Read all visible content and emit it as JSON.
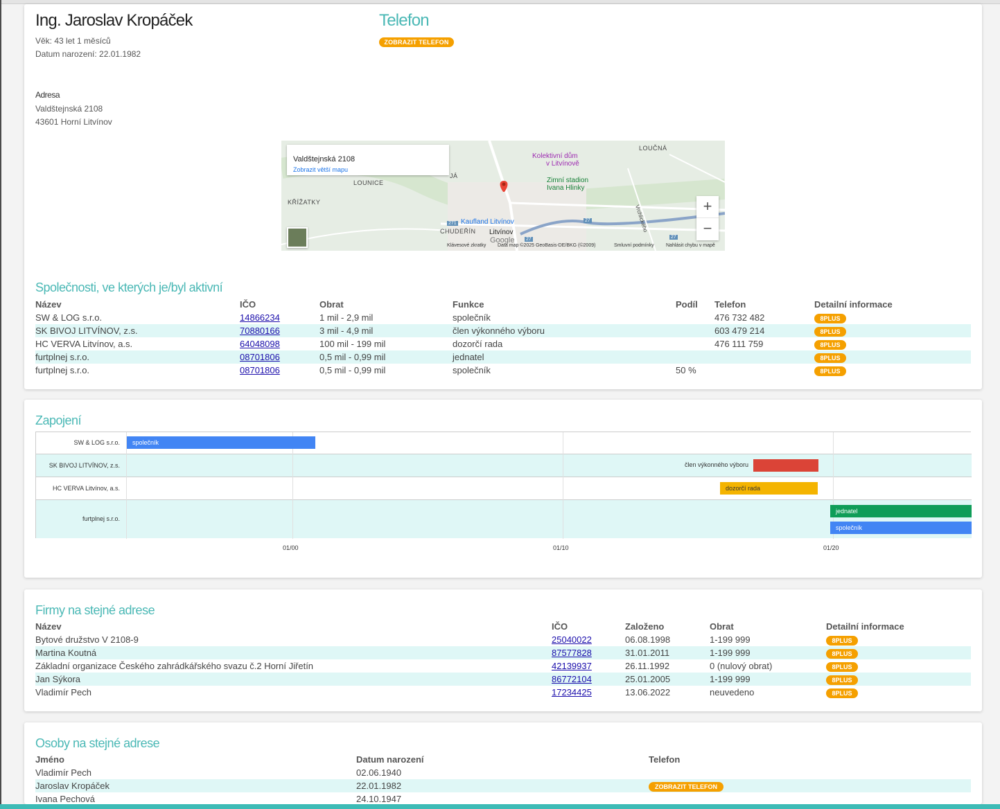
{
  "person": {
    "name": "Ing. Jaroslav Kropáček",
    "age": "Věk: 43 let 1 měsíců",
    "birth": "Datum narození: 22.01.1982",
    "address_label": "Adresa",
    "address_line1": "Valdštejnská 2108",
    "address_line2": "43601 Horní Litvínov"
  },
  "phone": {
    "title": "Telefon",
    "button": "ZOBRAZIT TELEFON"
  },
  "map": {
    "info_title": "Valdštejnská 2108",
    "info_link": "Zobrazit větší mapu",
    "places": {
      "loucna": "LOUČNÁ",
      "kolektivni1": "Kolektivní dům",
      "kolektivni2": "v Litvínově",
      "zimni1": "Zimní stadion",
      "zimni2": "Ivana Hlinky",
      "lounice": "LOUNICE",
      "krizatky": "KŘÍŽATKY",
      "kaufland": "Kaufland Litvínov",
      "chuderin": "CHUDEŘÍN",
      "litvinov": "Litvínov",
      "vrchlickeho": "Vrchlického",
      "ja": "JÁ",
      "r271": "271",
      "r27a": "27",
      "r27b": "27",
      "r27c": "27"
    },
    "google": "Google",
    "zoom_in": "+",
    "zoom_out": "−",
    "attrib": {
      "shortcuts": "Klávesové zkratky",
      "data": "Data map ©2025 GeoBasis-DE/BKG (©2009)",
      "terms": "Smluvní podmínky",
      "report": "Nahlásit chybu v mapě"
    }
  },
  "companies": {
    "title": "Společnosti, ve kterých je/byl aktivní",
    "headers": {
      "name": "Název",
      "ico": "IČO",
      "turnover": "Obrat",
      "function": "Funkce",
      "share": "Podíl",
      "phone": "Telefon",
      "detail": "Detailní informace"
    },
    "rows": [
      {
        "name": "SW & LOG s.r.o.",
        "ico": "14866234",
        "turnover": "1 mil - 2,9 mil",
        "function": "společník",
        "share": "",
        "phone": "476 732 482",
        "badge": "8PLUS"
      },
      {
        "name": "SK BIVOJ LITVÍNOV, z.s.",
        "ico": "70880166",
        "turnover": "3 mil - 4,9 mil",
        "function": "člen výkonného výboru",
        "share": "",
        "phone": "603 479 214",
        "badge": "8PLUS"
      },
      {
        "name": "HC VERVA Litvínov, a.s.",
        "ico": "64048098",
        "turnover": "100 mil - 199 mil",
        "function": "dozorčí rada",
        "share": "",
        "phone": "476 111 759",
        "badge": "8PLUS"
      },
      {
        "name": "furtplnej s.r.o.",
        "ico": "08701806",
        "turnover": "0,5 mil - 0,99 mil",
        "function": "jednatel",
        "share": "",
        "phone": "",
        "badge": "8PLUS"
      },
      {
        "name": "furtplnej s.r.o.",
        "ico": "08701806",
        "turnover": "0,5 mil - 0,99 mil",
        "function": "společník",
        "share": "50 %",
        "phone": "",
        "badge": "8PLUS"
      }
    ]
  },
  "timeline": {
    "title": "Zapojení",
    "rows": [
      {
        "label": "SW & LOG s.r.o."
      },
      {
        "label": "SK BIVOJ LITVÍNOV, z.s."
      },
      {
        "label": "HC VERVA Litvínov, a.s."
      },
      {
        "label": "furtplnej s.r.o."
      }
    ],
    "ticks": [
      "01/00",
      "01/10",
      "01/20"
    ],
    "bars": [
      {
        "label": "společník",
        "color": "#4285f4"
      },
      {
        "label": "člen výkonného výboru",
        "color": "#db4437"
      },
      {
        "label": "dozorčí rada",
        "color": "#f4b400"
      },
      {
        "label": "jednatel",
        "color": "#0f9d58"
      },
      {
        "label": "společník",
        "color": "#4285f4"
      }
    ]
  },
  "same_address_firms": {
    "title": "Firmy na stejné adrese",
    "headers": {
      "name": "Název",
      "ico": "IČO",
      "founded": "Založeno",
      "turnover": "Obrat",
      "detail": "Detailní informace"
    },
    "rows": [
      {
        "name": "Bytové družstvo V 2108-9",
        "ico": "25040022",
        "founded": "06.08.1998",
        "turnover": "1-199 999",
        "badge": "8PLUS"
      },
      {
        "name": "Martina Koutná",
        "ico": "87577828",
        "founded": "31.01.2011",
        "turnover": "1-199 999",
        "badge": "8PLUS"
      },
      {
        "name": "Základní organizace Českého zahrádkářského svazu č.2 Horní Jiřetín",
        "ico": "42139937",
        "founded": "26.11.1992",
        "turnover": "0 (nulový obrat)",
        "badge": "8PLUS"
      },
      {
        "name": "Jan Sýkora",
        "ico": "86772104",
        "founded": "25.01.2005",
        "turnover": "1-199 999",
        "badge": "8PLUS"
      },
      {
        "name": "Vladimír Pech",
        "ico": "17234425",
        "founded": "13.06.2022",
        "turnover": "neuvedeno",
        "badge": "8PLUS"
      }
    ]
  },
  "same_address_persons": {
    "title": "Osoby na stejné adrese",
    "headers": {
      "name": "Jméno",
      "birth": "Datum narození",
      "phone": "Telefon"
    },
    "rows": [
      {
        "name": "Vladimír Pech",
        "birth": "02.06.1940",
        "phone_button": ""
      },
      {
        "name": "Jaroslav Kropáček",
        "birth": "22.01.1982",
        "phone_button": "ZOBRAZIT TELEFON"
      },
      {
        "name": "Ivana Pechová",
        "birth": "24.10.1947",
        "phone_button": ""
      }
    ]
  },
  "colors": {
    "accent": "#4ab8b5",
    "badge": "#f5a000",
    "row_alt": "#dff7f6",
    "link": "#1a0dab"
  }
}
